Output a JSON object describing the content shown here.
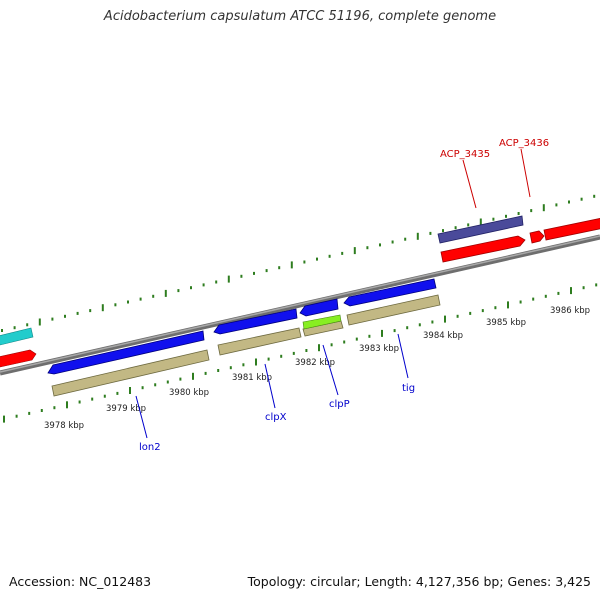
{
  "title": "Acidobacterium capsulatum ATCC 51196, complete genome",
  "footer": {
    "accession_label": "Accession: NC_012483",
    "stats_label": "Topology: circular; Length: 4,127,356 bp; Genes: 3,425"
  },
  "colors": {
    "backbone": "#8c8c8c",
    "tick": "#2e7d1f",
    "forward_cds": "#ff0000",
    "reverse_cds": "#1010ee",
    "forward_named": "#4a4a9a",
    "protein_bar": "#c2b884",
    "highlight": "#88ee22",
    "prev_gene": "#22cccc",
    "forward_label": "#cc0000",
    "reverse_label": "#0000cc"
  },
  "scale": {
    "labels": [
      "3978 kbp",
      "3979 kbp",
      "3980 kbp",
      "3981 kbp",
      "3982 kbp",
      "3983 kbp",
      "3984 kbp",
      "3985 kbp",
      "3986 kbp"
    ]
  },
  "gene_labels": {
    "reverse": [
      "lon2",
      "clpX",
      "clpP",
      "tig"
    ],
    "forward": [
      "ACP_3435",
      "ACP_3436"
    ]
  }
}
